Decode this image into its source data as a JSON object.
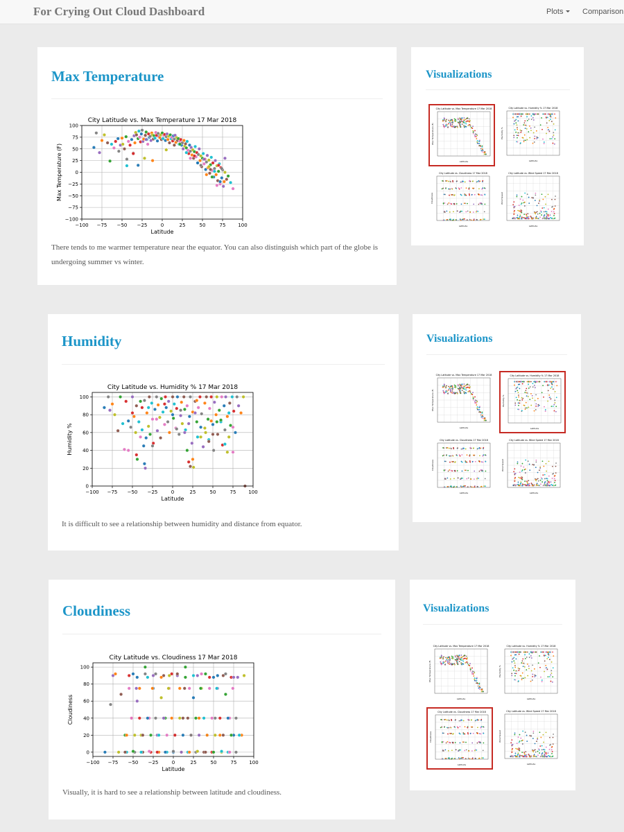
{
  "nav": {
    "brand": "For Crying Out Cloud Dashboard",
    "plots_label": "Plots",
    "comparison_label": "Comparison"
  },
  "sections": [
    {
      "id": "max-temperature",
      "heading": "Max Temperature",
      "description_line1": "There tends to me warmer temperature near the equator. You can also distinguish which part of the globe is",
      "description_line2": "undergoing summer vs winter.",
      "sidebar_title": "Visualizations",
      "selected_thumb": 0
    },
    {
      "id": "humidity",
      "heading": "Humidity",
      "description_line1": "It is difficult to see a relationship between humidity and distance from equator.",
      "description_line2": "",
      "sidebar_title": "Visualizations",
      "selected_thumb": 1
    },
    {
      "id": "cloudiness",
      "heading": "Cloudiness",
      "description_line1": "Visually, it is hard to see a relationship between latitude and cloudiness.",
      "description_line2": "",
      "sidebar_title": "Visualizations",
      "selected_thumb": 2
    }
  ],
  "thumbnails": [
    {
      "title": "City Latitude vs. Max Temperature 17 Mar 2018",
      "ylabel": "Max Temperature (F)",
      "xlabel": "Latitude",
      "kind": "temperature"
    },
    {
      "title": "City Latitude vs. Humidity % 17 Mar 2018",
      "ylabel": "Humidity %",
      "xlabel": "Latitude",
      "kind": "humidity"
    },
    {
      "title": "City Latitude vs. Cloudiness 17 Mar 2018",
      "ylabel": "Cloudiness",
      "xlabel": "Latitude",
      "kind": "cloudiness"
    },
    {
      "title": "City Latitude vs. Wind Speed 17 Mar 2018",
      "ylabel": "Wind Speed",
      "xlabel": "Latitude",
      "kind": "wind"
    }
  ],
  "colors": {
    "accent": "#1c95c8",
    "selected_border": "#c62a23",
    "palette": [
      "#1f77b4",
      "#ff7f0e",
      "#2ca02c",
      "#d62728",
      "#9467bd",
      "#8c564b",
      "#e377c2",
      "#7f7f7f",
      "#bcbd22",
      "#17becf"
    ]
  },
  "chart_data": [
    {
      "type": "scatter",
      "title": "City Latitude vs. Max Temperature 17 Mar 2018",
      "xlabel": "Latitude",
      "ylabel": "Max Temperature (F)",
      "xlim": [
        -100,
        100
      ],
      "ylim": [
        -100,
        100
      ],
      "xticks": [
        -100,
        -75,
        -50,
        -25,
        0,
        25,
        50,
        75,
        100
      ],
      "yticks": [
        -100,
        -75,
        -50,
        -25,
        0,
        25,
        50,
        75,
        100
      ],
      "grid": true,
      "x": [
        -85,
        -82,
        -78,
        -75,
        -72,
        -68,
        -65,
        -63,
        -60,
        -58,
        -55,
        -54,
        -52,
        -50,
        -49,
        -47,
        -45,
        -44,
        -42,
        -40,
        -38,
        -36,
        -35,
        -34,
        -33,
        -32,
        -30,
        -29,
        -28,
        -27,
        -26,
        -25,
        -24,
        -23,
        -22,
        -21,
        -20,
        -19,
        -18,
        -17,
        -16,
        -15,
        -14,
        -13,
        -12,
        -11,
        -10,
        -9,
        -8,
        -7,
        -6,
        -5,
        -4,
        -3,
        -2,
        -1,
        0,
        1,
        2,
        3,
        4,
        5,
        6,
        7,
        8,
        9,
        10,
        11,
        12,
        13,
        14,
        15,
        16,
        17,
        18,
        19,
        20,
        21,
        22,
        23,
        24,
        25,
        26,
        27,
        28,
        29,
        30,
        31,
        32,
        33,
        34,
        35,
        36,
        37,
        38,
        39,
        40,
        41,
        42,
        43,
        44,
        45,
        46,
        47,
        48,
        49,
        50,
        51,
        52,
        53,
        54,
        55,
        56,
        57,
        58,
        59,
        60,
        61,
        62,
        63,
        64,
        65,
        66,
        67,
        68,
        69,
        70,
        71,
        72,
        73,
        74,
        75,
        76,
        77,
        78,
        80,
        82,
        85,
        88,
        -36,
        -30,
        -44,
        -20,
        -12,
        5,
        15,
        22,
        30,
        35,
        40,
        44,
        48,
        52,
        55,
        58,
        60,
        62,
        65,
        68,
        70,
        72,
        74,
        78
      ],
      "y": [
        53,
        84,
        42,
        68,
        80,
        63,
        24,
        60,
        52,
        66,
        72,
        45,
        58,
        73,
        60,
        50,
        76,
        14,
        66,
        58,
        70,
        41,
        78,
        63,
        85,
        80,
        72,
        88,
        75,
        65,
        82,
        90,
        66,
        71,
        30,
        79,
        86,
        70,
        60,
        82,
        75,
        77,
        68,
        84,
        80,
        71,
        78,
        73,
        85,
        79,
        67,
        83,
        76,
        74,
        80,
        70,
        84,
        72,
        79,
        81,
        68,
        76,
        82,
        70,
        77,
        63,
        80,
        72,
        75,
        67,
        78,
        71,
        79,
        64,
        74,
        68,
        72,
        60,
        66,
        70,
        58,
        63,
        50,
        68,
        56,
        61,
        52,
        66,
        47,
        40,
        58,
        45,
        53,
        37,
        48,
        30,
        44,
        55,
        33,
        42,
        20,
        38,
        50,
        25,
        35,
        12,
        30,
        40,
        18,
        28,
        6,
        22,
        36,
        10,
        26,
        -2,
        16,
        32,
        4,
        20,
        -10,
        8,
        25,
        -5,
        14,
        -18,
        2,
        18,
        -25,
        10,
        -12,
        5,
        -30,
        -20,
        0,
        -15,
        -8,
        -22,
        -35,
        40,
        15,
        28,
        70,
        25,
        48,
        58,
        60,
        42,
        30,
        35,
        20,
        15,
        28,
        -5,
        12,
        6,
        -10,
        2,
        -28,
        15,
        -20,
        8,
        30
      ]
    },
    {
      "type": "scatter",
      "title": "City Latitude vs. Humidity % 17 Mar 2018",
      "xlabel": "Latitude",
      "ylabel": "Humidity %",
      "xlim": [
        -100,
        100
      ],
      "ylim": [
        0,
        105
      ],
      "xticks": [
        -100,
        -75,
        -50,
        -25,
        0,
        25,
        50,
        75,
        100
      ],
      "yticks": [
        0,
        20,
        40,
        60,
        80,
        100
      ],
      "grid": true,
      "x": [
        -85,
        -80,
        -78,
        -75,
        -72,
        -68,
        -65,
        -62,
        -60,
        -58,
        -55,
        -52,
        -50,
        -48,
        -46,
        -45,
        -44,
        -42,
        -40,
        -38,
        -36,
        -35,
        -34,
        -32,
        -30,
        -29,
        -28,
        -26,
        -25,
        -24,
        -22,
        -20,
        -19,
        -18,
        -16,
        -15,
        -14,
        -12,
        -10,
        -9,
        -8,
        -6,
        -5,
        -4,
        -2,
        0,
        1,
        2,
        4,
        5,
        6,
        8,
        10,
        11,
        12,
        14,
        15,
        16,
        18,
        20,
        21,
        22,
        24,
        25,
        26,
        28,
        30,
        31,
        32,
        34,
        35,
        36,
        38,
        40,
        41,
        42,
        44,
        45,
        46,
        48,
        50,
        51,
        52,
        54,
        55,
        56,
        58,
        60,
        61,
        62,
        64,
        65,
        66,
        68,
        70,
        71,
        72,
        74,
        75,
        76,
        78,
        80,
        82,
        85,
        88,
        90,
        -40,
        -30,
        -20,
        -10,
        0,
        10,
        20,
        30,
        40,
        50,
        60,
        70,
        -55,
        -45,
        -35,
        -25,
        15,
        25,
        35,
        45,
        55,
        65,
        75,
        -50,
        -33,
        5,
        28,
        48,
        68,
        22,
        18,
        -38
      ],
      "y": [
        88,
        100,
        85,
        92,
        80,
        62,
        100,
        70,
        41,
        95,
        73,
        66,
        100,
        78,
        60,
        90,
        30,
        72,
        55,
        88,
        45,
        96,
        20,
        82,
        67,
        100,
        58,
        93,
        75,
        48,
        86,
        100,
        62,
        91,
        77,
        54,
        98,
        83,
        69,
        100,
        88,
        72,
        95,
        60,
        84,
        100,
        76,
        92,
        65,
        87,
        100,
        58,
        79,
        94,
        70,
        100,
        86,
        63,
        90,
        27,
        78,
        100,
        48,
        83,
        21,
        95,
        72,
        55,
        88,
        100,
        66,
        81,
        44,
        93,
        60,
        100,
        75,
        52,
        87,
        100,
        69,
        40,
        94,
        80,
        100,
        58,
        85,
        72,
        100,
        46,
        90,
        63,
        100,
        78,
        55,
        93,
        68,
        100,
        38,
        84,
        60,
        100,
        90,
        82,
        100,
        0,
        95,
        88,
        75,
        92,
        80,
        85,
        70,
        96,
        65,
        58,
        74,
        82,
        40,
        35,
        25,
        45,
        60,
        30,
        55,
        50,
        72,
        47,
        66,
        82,
        54,
        64,
        82,
        73,
        38,
        22,
        40,
        63
      ],
      "ylabel_note": ""
    },
    {
      "type": "scatter",
      "title": "City Latitude vs. Cloudiness 17 Mar 2018",
      "xlabel": "Latitude",
      "ylabel": "Cloudiness",
      "xlim": [
        -100,
        100
      ],
      "ylim": [
        -5,
        105
      ],
      "xticks": [
        -100,
        -75,
        -50,
        -25,
        0,
        25,
        50,
        75,
        100
      ],
      "yticks": [
        0,
        20,
        40,
        60,
        80,
        100
      ],
      "grid": true,
      "x": [
        -85,
        -78,
        -75,
        -72,
        -68,
        -65,
        -60,
        -58,
        -55,
        -52,
        -50,
        -48,
        -45,
        -42,
        -40,
        -38,
        -35,
        -32,
        -30,
        -28,
        -25,
        -22,
        -20,
        -18,
        -15,
        -12,
        -10,
        -8,
        -5,
        -2,
        0,
        2,
        5,
        8,
        10,
        12,
        15,
        18,
        20,
        22,
        25,
        28,
        30,
        32,
        35,
        38,
        40,
        42,
        45,
        48,
        50,
        52,
        55,
        58,
        60,
        62,
        65,
        68,
        70,
        72,
        75,
        78,
        80,
        85,
        88,
        -60,
        -50,
        -40,
        -30,
        -20,
        -10,
        0,
        10,
        20,
        30,
        40,
        50,
        60,
        70,
        -55,
        -45,
        -35,
        -25,
        -15,
        -5,
        5,
        15,
        25,
        35,
        45,
        55,
        65,
        75,
        -58,
        -48,
        -38,
        -28,
        -18,
        -8,
        2,
        12,
        22,
        32,
        42,
        52,
        62,
        72,
        82,
        -52,
        -42,
        -32,
        -22,
        -12,
        -2,
        8,
        18,
        28,
        38,
        48,
        58,
        68,
        78,
        -46,
        -26,
        -6,
        14,
        34,
        54,
        74
      ],
      "y": [
        0,
        56,
        90,
        92,
        0,
        68,
        20,
        0,
        75,
        40,
        92,
        0,
        60,
        75,
        20,
        0,
        100,
        88,
        40,
        0,
        75,
        92,
        20,
        0,
        64,
        90,
        40,
        0,
        75,
        92,
        0,
        20,
        90,
        75,
        0,
        40,
        100,
        0,
        75,
        20,
        64,
        0,
        90,
        40,
        75,
        0,
        92,
        20,
        75,
        0,
        88,
        40,
        75,
        20,
        0,
        90,
        68,
        0,
        40,
        88,
        20,
        0,
        88,
        20,
        90,
        0,
        1,
        0,
        1,
        0,
        0,
        1,
        0,
        0,
        1,
        0,
        0,
        1,
        0,
        90,
        88,
        92,
        90,
        88,
        90,
        92,
        88,
        90,
        92,
        88,
        90,
        92,
        88,
        20,
        20,
        20,
        20,
        20,
        20,
        20,
        20,
        20,
        20,
        20,
        20,
        20,
        20,
        20,
        40,
        40,
        40,
        40,
        40,
        40,
        40,
        40,
        40,
        40,
        40,
        40,
        40,
        40,
        75,
        75,
        75,
        75,
        75,
        75,
        75
      ]
    }
  ]
}
